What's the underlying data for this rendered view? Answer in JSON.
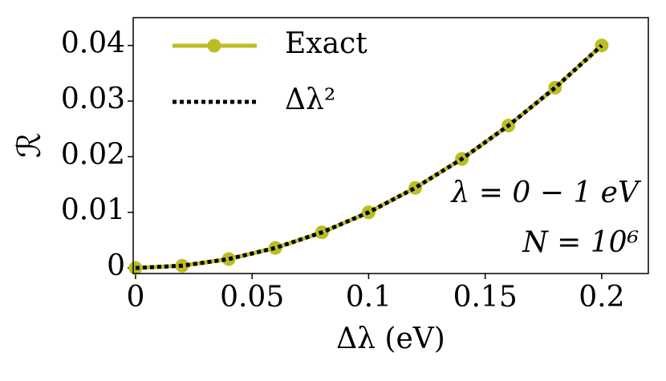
{
  "chart_data": {
    "type": "line",
    "x_label": "Δλ (eV)",
    "y_label": "ℛ",
    "x": [
      0,
      0.02,
      0.04,
      0.06,
      0.08,
      0.1,
      0.12,
      0.14,
      0.16,
      0.18,
      0.2
    ],
    "series": [
      {
        "name": "Exact",
        "color": "#bcbd22",
        "style": "solid",
        "markers": true,
        "values": [
          0,
          0.0004,
          0.0016,
          0.0036,
          0.0064,
          0.01,
          0.0144,
          0.0196,
          0.0256,
          0.0324,
          0.04
        ]
      },
      {
        "name": "Δλ²",
        "color": "#000000",
        "style": "dotted",
        "markers": false,
        "values": [
          0,
          0.0004,
          0.0016,
          0.0036,
          0.0064,
          0.01,
          0.0144,
          0.0196,
          0.0256,
          0.0324,
          0.04
        ]
      }
    ],
    "xlim": [
      -0.001,
      0.22
    ],
    "ylim": [
      -0.001,
      0.045
    ],
    "xticks": [
      0,
      0.05,
      0.1,
      0.15,
      0.2
    ],
    "yticks": [
      0,
      0.01,
      0.02,
      0.03,
      0.04
    ],
    "legend": "upper left",
    "annotations": [
      "λ = 0 − 1 eV",
      "N = 10⁶"
    ]
  }
}
